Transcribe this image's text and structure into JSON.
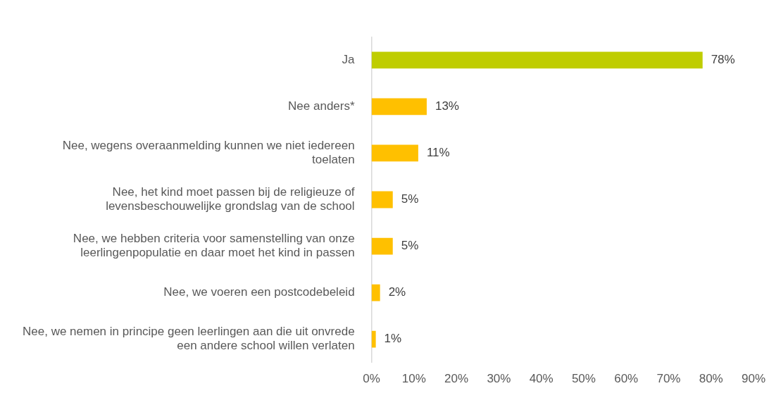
{
  "chart_data": {
    "type": "bar",
    "orientation": "horizontal",
    "categories": [
      "Ja",
      "Nee anders*",
      "Nee, wegens overaanmelding kunnen we niet iedereen toelaten",
      "Nee, het kind moet passen bij de religieuze of levensbeschouwelijke grondslag van de school",
      "Nee, we hebben criteria voor samenstelling van onze leerlingenpopulatie en daar moet het kind in passen",
      "Nee, we voeren een postcodebeleid",
      "Nee, we nemen in principe geen leerlingen aan die uit onvrede een andere school willen verlaten"
    ],
    "values": [
      78,
      13,
      11,
      5,
      5,
      2,
      1
    ],
    "colors": [
      "#bfcd00",
      "#ffc000",
      "#ffc000",
      "#ffc000",
      "#ffc000",
      "#ffc000",
      "#ffc000"
    ],
    "value_labels": [
      "78%",
      "13%",
      "11%",
      "5%",
      "5%",
      "2%",
      "1%"
    ],
    "xlim": [
      0,
      90
    ],
    "xticks": [
      {
        "value": 0,
        "label": "0%"
      },
      {
        "value": 10,
        "label": "10%"
      },
      {
        "value": 20,
        "label": "20%"
      },
      {
        "value": 30,
        "label": "30%"
      },
      {
        "value": 40,
        "label": "40%"
      },
      {
        "value": 50,
        "label": "50%"
      },
      {
        "value": 60,
        "label": "60%"
      },
      {
        "value": 70,
        "label": "70%"
      },
      {
        "value": 80,
        "label": "80%"
      },
      {
        "value": 90,
        "label": "90%"
      }
    ],
    "grid": false,
    "legend": false
  }
}
